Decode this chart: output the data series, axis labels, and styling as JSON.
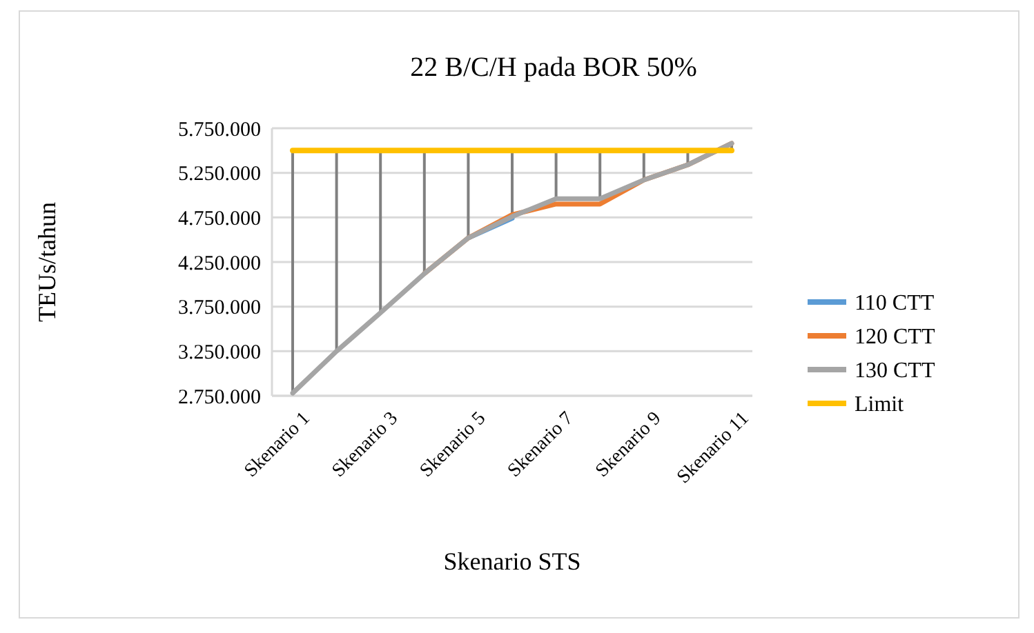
{
  "chart_data": {
    "type": "line",
    "title": "22 B/C/H pada BOR 50%",
    "xlabel": "Skenario STS",
    "ylabel": "TEUs/tahun",
    "categories": [
      "Skenario 1",
      null,
      "Skenario 3",
      null,
      "Skenario 5",
      null,
      "Skenario 7",
      null,
      "Skenario 9",
      null,
      "Skenario 11"
    ],
    "series": [
      {
        "name": "110 CTT",
        "color": "#5b9bd5",
        "values": [
          null,
          null,
          null,
          null,
          4520000,
          4740000,
          null,
          null,
          null,
          null,
          null
        ]
      },
      {
        "name": "120 CTT",
        "color": "#ed7d31",
        "values": [
          null,
          null,
          null,
          4120000,
          4520000,
          4780000,
          4900000,
          4900000,
          5170000,
          5340000,
          5580000
        ]
      },
      {
        "name": "130 CTT",
        "color": "#a5a5a5",
        "values": [
          2780000,
          3250000,
          3680000,
          4120000,
          4520000,
          4760000,
          4960000,
          4960000,
          5170000,
          5340000,
          5580000
        ]
      },
      {
        "name": "Limit",
        "color": "#ffc000",
        "values": [
          5500000,
          5500000,
          5500000,
          5500000,
          5500000,
          5500000,
          5500000,
          5500000,
          5500000,
          5500000,
          5500000
        ],
        "errors": [
          [
            2780000,
            5500000
          ],
          [
            3250000,
            5500000
          ],
          [
            3680000,
            5500000
          ],
          [
            4120000,
            5500000
          ],
          [
            4520000,
            5500000
          ],
          [
            4760000,
            5500000
          ],
          [
            4960000,
            5500000
          ],
          [
            4960000,
            5500000
          ],
          [
            5170000,
            5500000
          ],
          [
            5340000,
            5500000
          ],
          [
            5500000,
            5580000
          ]
        ]
      }
    ],
    "ylim": [
      2750000,
      5750000
    ],
    "yticks": [
      {
        "value": 2750000,
        "label": "2.750.000"
      },
      {
        "value": 3250000,
        "label": "3.250.000"
      },
      {
        "value": 3750000,
        "label": "3.750.000"
      },
      {
        "value": 4250000,
        "label": "4.250.000"
      },
      {
        "value": 4750000,
        "label": "4.750.000"
      },
      {
        "value": 5250000,
        "label": "5.250.000"
      },
      {
        "value": 5750000,
        "label": "5.750.000"
      }
    ],
    "grid": "y",
    "legend": "right",
    "marker": "none",
    "line_style": "solid"
  }
}
